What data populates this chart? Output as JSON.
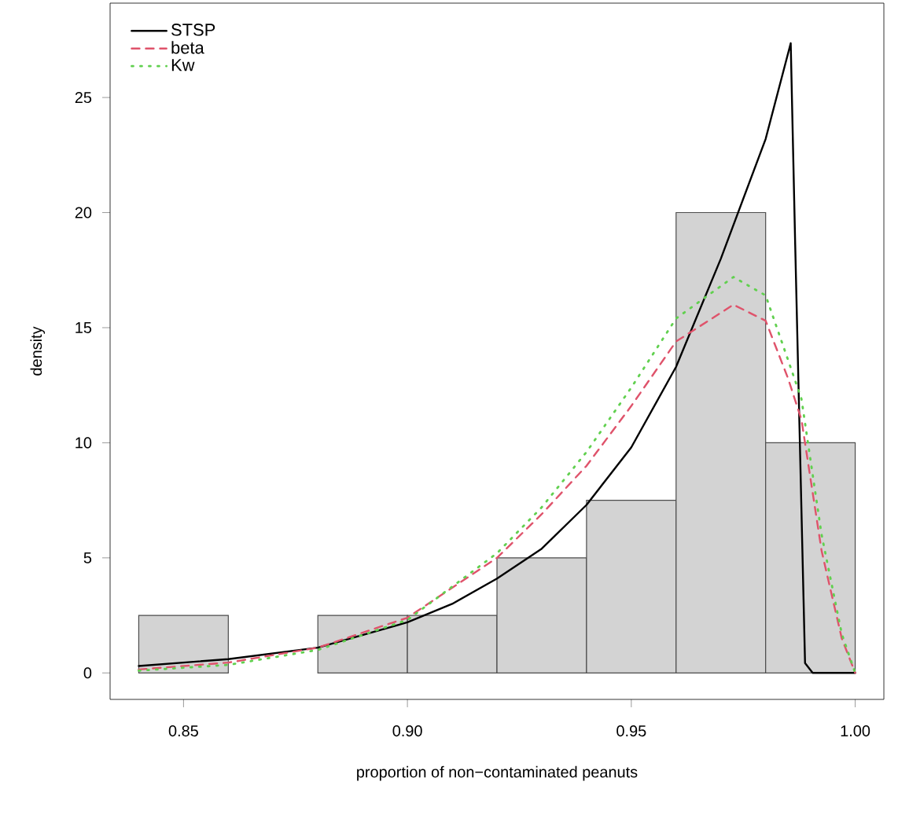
{
  "chart_data": {
    "type": "histogram",
    "xlabel": "proportion of non−contaminated peanuts",
    "ylabel": "density",
    "bins": [
      0.84,
      0.86,
      0.88,
      0.9,
      0.92,
      0.94,
      0.96,
      0.98,
      1.0
    ],
    "values": [
      2.5,
      0,
      2.5,
      2.5,
      5,
      7.5,
      20,
      10
    ],
    "color": "#d3d3d3",
    "xlim": [
      0.8336,
      1.0064
    ],
    "ylim": [
      -1.15,
      29.1
    ],
    "xticks": [
      {
        "value": 0.85,
        "label": "0.85"
      },
      {
        "value": 0.9,
        "label": "0.90"
      },
      {
        "value": 0.95,
        "label": "0.95"
      },
      {
        "value": 1.0,
        "label": "1.00"
      }
    ],
    "yticks": [
      0,
      5,
      10,
      15,
      20,
      25
    ],
    "legend": "top left",
    "series": [
      {
        "name": "STSP",
        "type": "line",
        "color": "#000000",
        "line_style": "solid",
        "x": [
          0.84,
          0.86,
          0.88,
          0.9,
          0.91,
          0.92,
          0.93,
          0.94,
          0.95,
          0.96,
          0.97,
          0.98,
          0.9856,
          0.9866,
          0.9888,
          0.9905,
          1.0
        ],
        "values": [
          0.3,
          0.6,
          1.1,
          2.2,
          3.0,
          4.1,
          5.4,
          7.3,
          9.8,
          13.3,
          18.0,
          23.2,
          27.36,
          18.6,
          0.43,
          0,
          0
        ]
      },
      {
        "name": "beta",
        "type": "line",
        "color": "#df536b",
        "line_style": "dashed",
        "x": [
          0.84,
          0.86,
          0.88,
          0.9,
          0.92,
          0.93,
          0.94,
          0.95,
          0.96,
          0.9728,
          0.98,
          0.985,
          0.988,
          0.9925,
          0.997,
          1.0
        ],
        "values": [
          0.15,
          0.45,
          1.1,
          2.4,
          5.0,
          6.9,
          9.0,
          11.6,
          14.4,
          16.0,
          15.3,
          12.8,
          11.0,
          5.3,
          1.5,
          0
        ]
      },
      {
        "name": "Kw",
        "type": "line",
        "color": "#61d04f",
        "line_style": "dotted",
        "x": [
          0.84,
          0.86,
          0.88,
          0.9,
          0.92,
          0.93,
          0.94,
          0.95,
          0.96,
          0.9728,
          0.98,
          0.985,
          0.988,
          0.9925,
          0.997,
          1.0
        ],
        "values": [
          0.1,
          0.35,
          1.0,
          2.3,
          5.2,
          7.2,
          9.6,
          12.4,
          15.4,
          17.2,
          16.4,
          13.6,
          11.9,
          6.0,
          1.7,
          0
        ]
      }
    ]
  }
}
